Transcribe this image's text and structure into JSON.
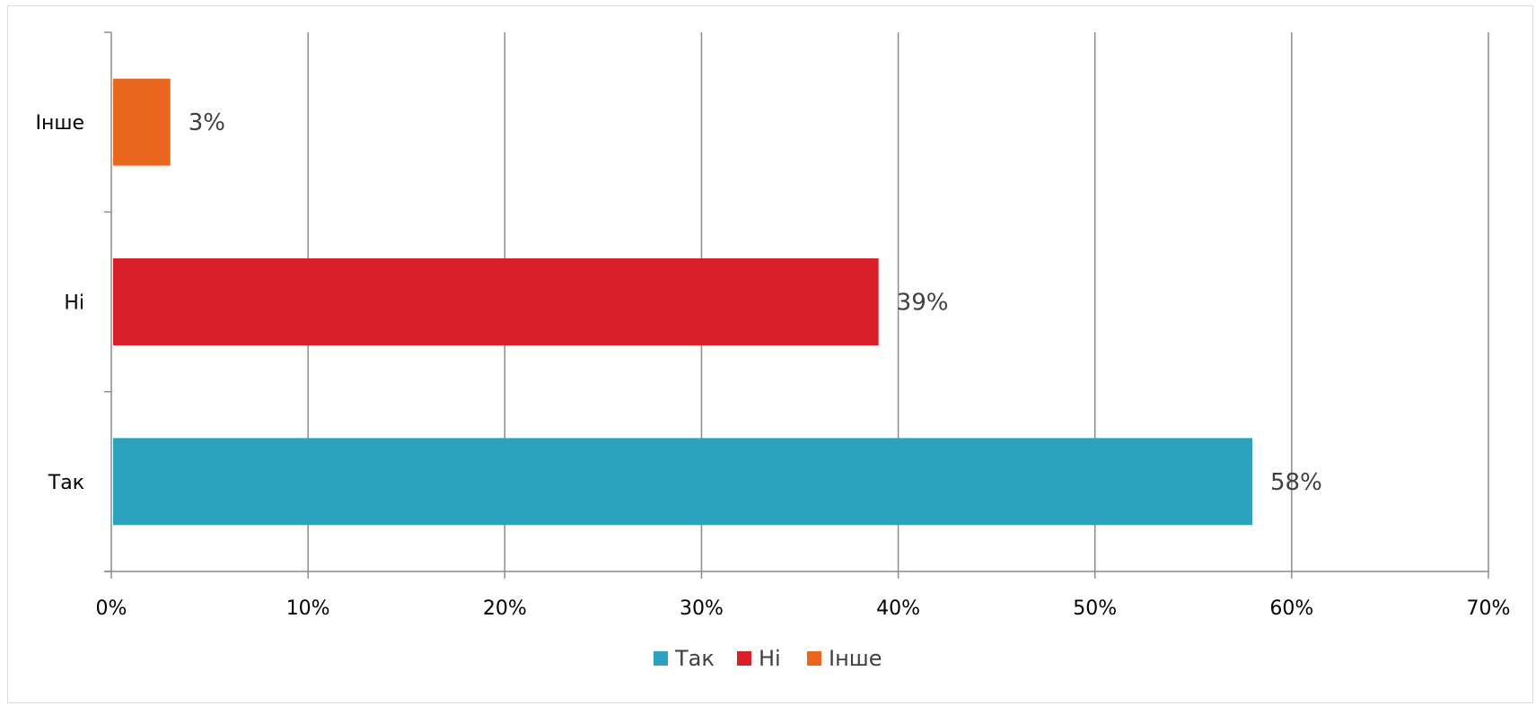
{
  "chart_data": {
    "type": "bar",
    "orientation": "horizontal",
    "categories": [
      "Так",
      "Ні",
      "Інше"
    ],
    "values": [
      58,
      39,
      3
    ],
    "data_labels": [
      "58%",
      "39%",
      "3%"
    ],
    "colors": [
      "#2ca2be",
      "#d9202a",
      "#ea651e"
    ],
    "xlim": [
      0,
      70
    ],
    "x_ticks": [
      0,
      10,
      20,
      30,
      40,
      50,
      60,
      70
    ],
    "x_tick_labels": [
      "0%",
      "10%",
      "20%",
      "30%",
      "40%",
      "50%",
      "60%",
      "70%"
    ],
    "grid": "vertical",
    "legend": {
      "position": "bottom",
      "entries": [
        "Так",
        "Ні",
        "Інше"
      ]
    },
    "title": "",
    "xlabel": "",
    "ylabel": ""
  }
}
